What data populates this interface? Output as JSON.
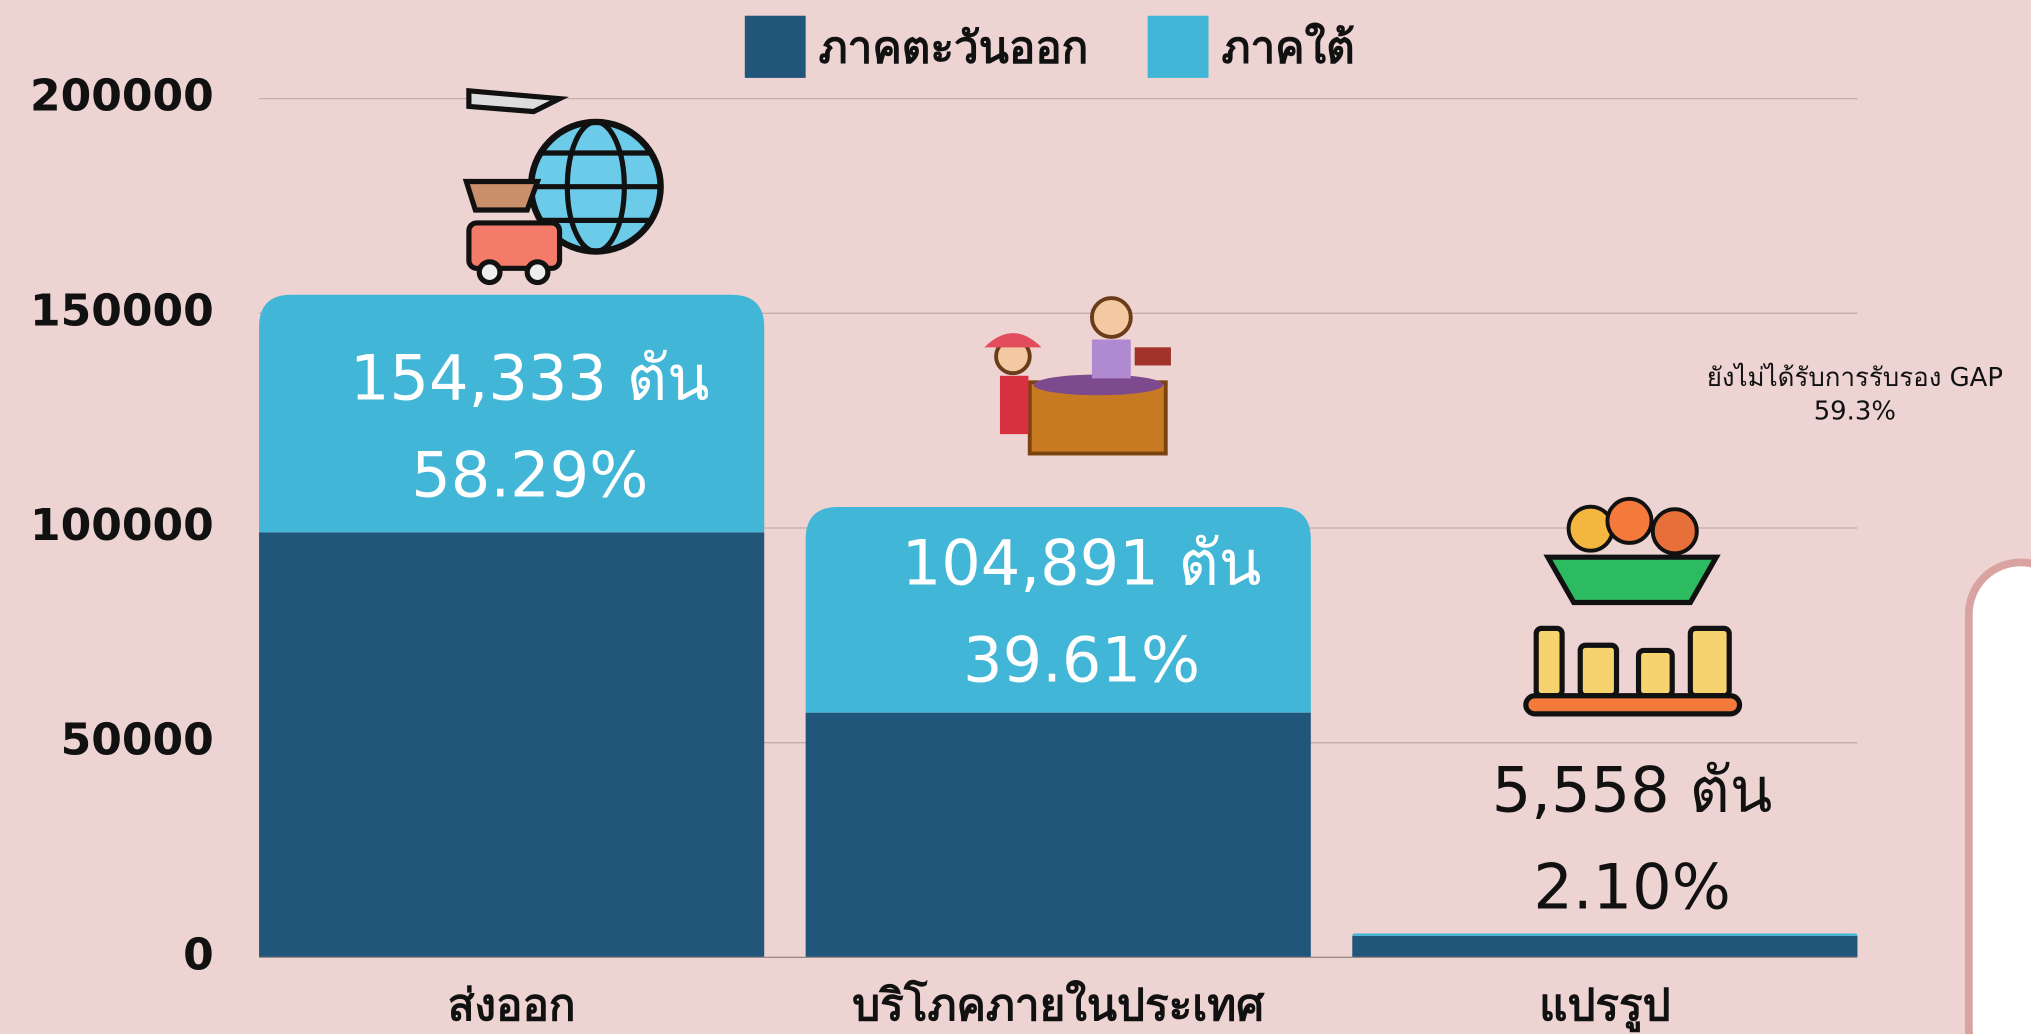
{
  "chart_data": {
    "type": "stacked_bar",
    "categories": [
      "ส่งออก",
      "บริโภคภายในประเทศ",
      "แปรรูป"
    ],
    "series": [
      {
        "name": "ภาคตะวันออก",
        "color": "#22557a",
        "values": [
          99000,
          57000,
          5000
        ]
      },
      {
        "name": "ภาคใต้",
        "color": "#41b6d6",
        "values": [
          55333,
          47891,
          558
        ]
      }
    ],
    "bar_labels": [
      {
        "amount": "154,333 ตัน",
        "share": "58.29%"
      },
      {
        "amount": "104,891 ตัน",
        "share": "39.61%"
      },
      {
        "amount": "5,558 ตัน",
        "share": "2.10%"
      }
    ],
    "ylim": [
      0,
      200000
    ],
    "yticks": [
      0,
      50000,
      100000,
      150000,
      200000
    ],
    "grid": true,
    "legend": "top",
    "annotation": {
      "line1": "ยังไม่ได้รับการรับรอง GAP",
      "line2": "59.3%"
    }
  }
}
